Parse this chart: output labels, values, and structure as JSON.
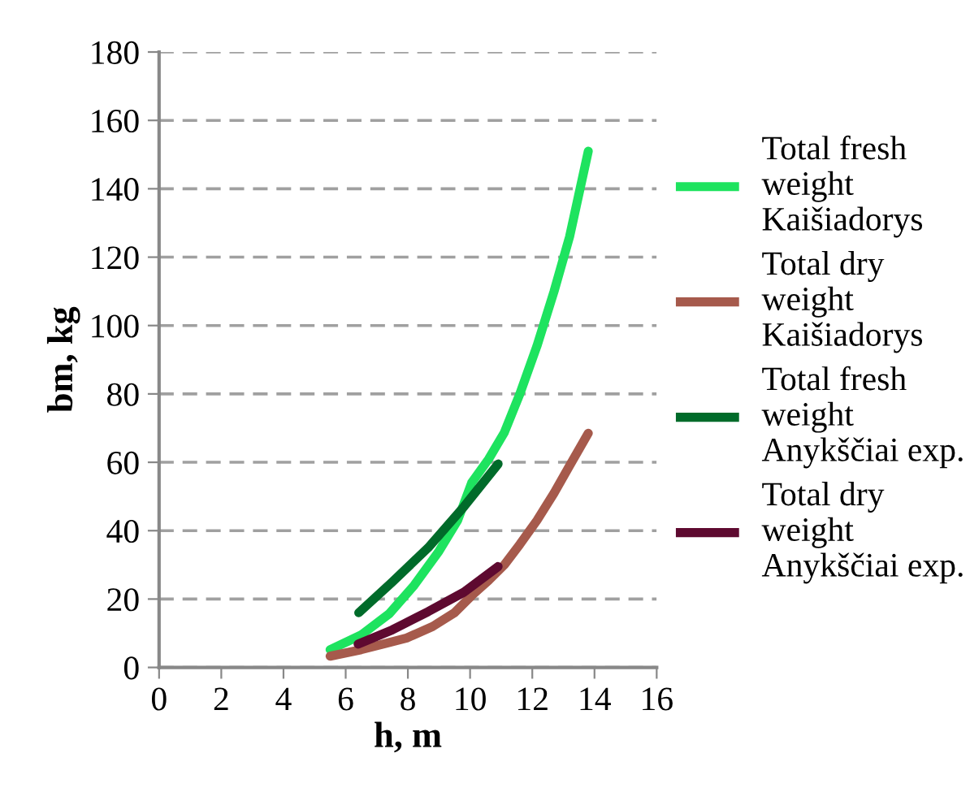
{
  "chart_data": {
    "type": "line",
    "xlabel": "h, m",
    "ylabel": "bm, kg",
    "xlim": [
      0,
      16
    ],
    "xticks": [
      0,
      2,
      4,
      6,
      8,
      10,
      12,
      14,
      16
    ],
    "ylim": [
      0,
      180
    ],
    "yticks": [
      0,
      20,
      40,
      60,
      80,
      100,
      120,
      140,
      160,
      180
    ],
    "grid": "y",
    "legend": "right",
    "marker": "none",
    "line_style": "solid",
    "series": [
      {
        "name": "Total fresh\nweight\nKaišiadorys",
        "color": "#1ee35f",
        "x": [
          5.5,
          6.5,
          7.4,
          8.2,
          9.0,
          9.6,
          10.05,
          10.6,
          11.1,
          11.6,
          12.15,
          12.7,
          13.2,
          13.8
        ],
        "values": [
          5.2,
          9.5,
          15.7,
          24,
          34,
          43,
          54,
          61,
          68.7,
          80,
          94,
          110,
          126,
          151
        ]
      },
      {
        "name": "Total dry\nweight\nKaišiadorys",
        "color": "#a65a4c",
        "x": [
          5.5,
          6.5,
          7.2,
          7.96,
          8.8,
          9.5,
          10.05,
          10.6,
          11.1,
          11.6,
          12.15,
          12.7,
          13.2,
          13.8
        ],
        "values": [
          3.3,
          5.2,
          6.8,
          8.6,
          12,
          16,
          21,
          25.5,
          30,
          36,
          43,
          51,
          59,
          68.5
        ]
      },
      {
        "name": "Total fresh\nweight\nAnykščiai exp.",
        "color": "#006b2a",
        "x": [
          6.42,
          7.5,
          8.65,
          9.8,
          10.9
        ],
        "values": [
          16,
          25,
          35,
          47,
          59.5
        ]
      },
      {
        "name": "Total dry\nweight\nAnykščiai exp.",
        "color": "#5e0a30",
        "x": [
          6.4,
          7.5,
          8.65,
          9.8,
          10.9
        ],
        "values": [
          6.8,
          11,
          16.3,
          22,
          29.5
        ]
      }
    ]
  }
}
